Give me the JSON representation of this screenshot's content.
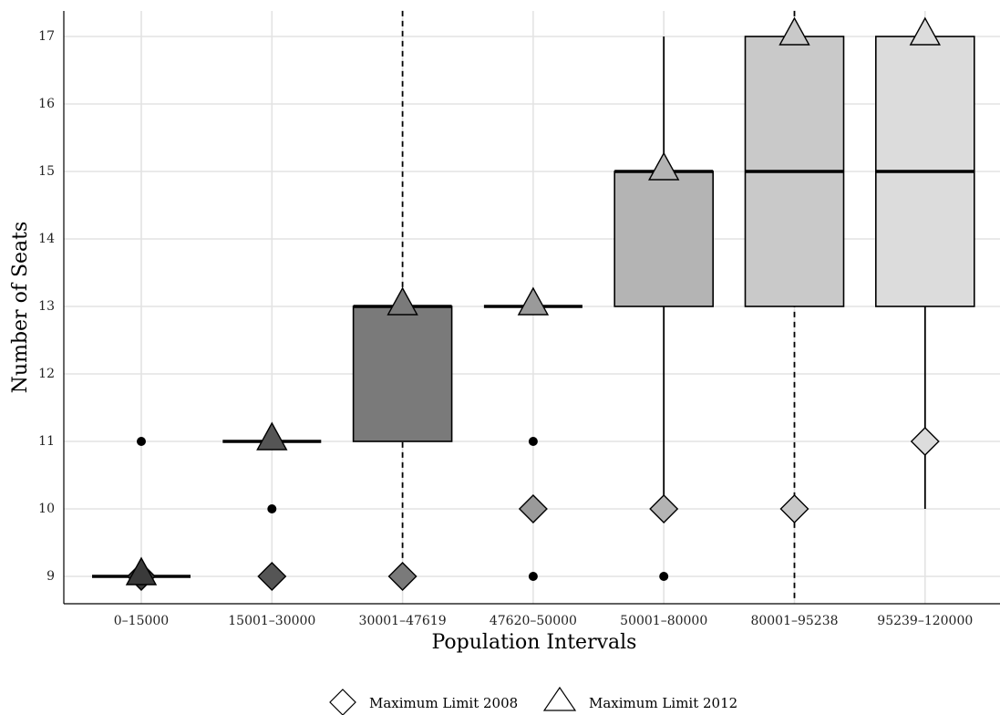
{
  "chart_data": {
    "type": "box",
    "xlabel": "Population Intervals",
    "ylabel": "Number of Seats",
    "ylim": [
      8.62,
      17.38
    ],
    "yticks": [
      9,
      10,
      11,
      12,
      13,
      14,
      15,
      16,
      17
    ],
    "grid": true,
    "legend_position": "bottom",
    "legend": [
      {
        "name": "Maximum Limit 2008",
        "marker": "diamond"
      },
      {
        "name": "Maximum Limit 2012",
        "marker": "triangle"
      }
    ],
    "categories": [
      "0-15000",
      "15001-30000",
      "30001-47619",
      "47620-50000",
      "50001-80000",
      "80001-95238",
      "95239-120000"
    ],
    "colors": [
      "#3a3a3a",
      "#555555",
      "#7a7a7a",
      "#9a9a9a",
      "#b4b4b4",
      "#c9c9c9",
      "#dcdcdc"
    ],
    "boxes": [
      {
        "category": "0-15000",
        "q1": 9,
        "median": 9,
        "q3": 9,
        "whisker_low": 9,
        "whisker_high": 9,
        "whisker_style": "solid",
        "outliers": [
          11
        ]
      },
      {
        "category": "15001-30000",
        "q1": 11,
        "median": 11,
        "q3": 11,
        "whisker_low": 11,
        "whisker_high": 11,
        "whisker_style": "solid",
        "outliers": [
          9,
          10
        ]
      },
      {
        "category": "30001-47619",
        "q1": 11,
        "median": 13,
        "q3": 13,
        "whisker_low": 9,
        "whisker_high": 17.38,
        "whisker_style": "dashed",
        "outliers": []
      },
      {
        "category": "47620-50000",
        "q1": 13,
        "median": 13,
        "q3": 13,
        "whisker_low": 13,
        "whisker_high": 13,
        "whisker_style": "solid",
        "outliers": [
          9,
          10,
          11
        ]
      },
      {
        "category": "50001-80000",
        "q1": 13,
        "median": 15,
        "q3": 15,
        "whisker_low": 10,
        "whisker_high": 17,
        "whisker_style": "solid",
        "outliers": [
          9
        ]
      },
      {
        "category": "80001-95238",
        "q1": 13,
        "median": 15,
        "q3": 17,
        "whisker_low": 8.62,
        "whisker_high": 17.38,
        "whisker_style": "dashed",
        "outliers": []
      },
      {
        "category": "95239-120000",
        "q1": 13,
        "median": 15,
        "q3": 17,
        "whisker_low": 10,
        "whisker_high": 17,
        "whisker_style": "solid",
        "outliers": []
      }
    ],
    "series": [
      {
        "name": "Maximum Limit 2008",
        "marker": "diamond",
        "values": [
          9,
          9,
          9,
          10,
          10,
          10,
          11
        ]
      },
      {
        "name": "Maximum Limit 2012",
        "marker": "triangle",
        "values": [
          9,
          11,
          13,
          13,
          15,
          17,
          17
        ]
      }
    ]
  }
}
